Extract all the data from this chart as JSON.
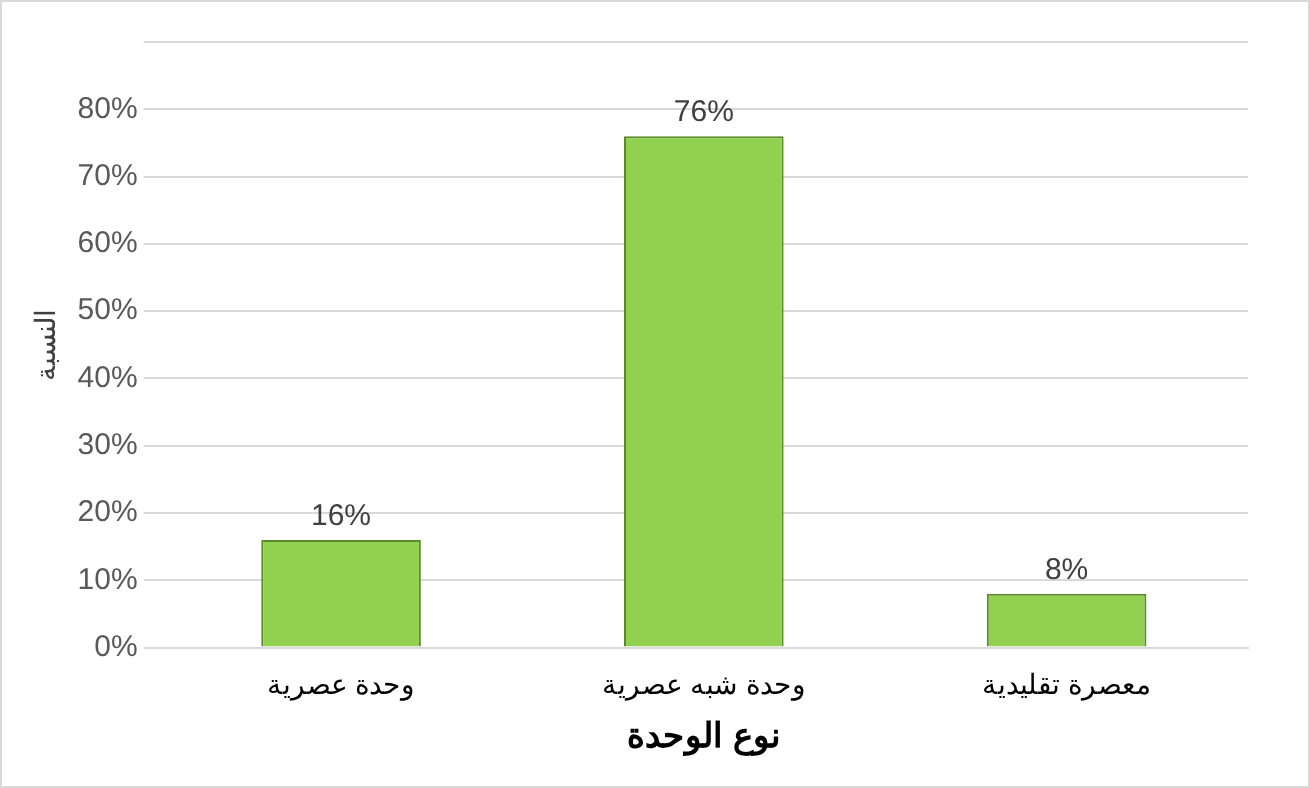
{
  "chart_data": {
    "type": "bar",
    "xlabel": "نوع الوحدة",
    "ylabel": "النسبة",
    "categories": [
      "وحدة عصرية",
      "وحدة شبه عصرية",
      "معصرة تقليدية"
    ],
    "values": [
      16,
      76,
      8
    ],
    "color": "#92d050",
    "value_labels": [
      "16%",
      "76%",
      "8%"
    ],
    "ylim": [
      0,
      90
    ],
    "yticks": [
      {
        "value": 0,
        "label": "0%"
      },
      {
        "value": 10,
        "label": "10%"
      },
      {
        "value": 20,
        "label": "20%"
      },
      {
        "value": 30,
        "label": "30%"
      },
      {
        "value": 40,
        "label": "40%"
      },
      {
        "value": 50,
        "label": "50%"
      },
      {
        "value": 60,
        "label": "60%"
      },
      {
        "value": 70,
        "label": "70%"
      },
      {
        "value": 80,
        "label": "80%"
      },
      {
        "value": 90,
        "label": null
      }
    ],
    "grid": "y",
    "legend": false
  }
}
